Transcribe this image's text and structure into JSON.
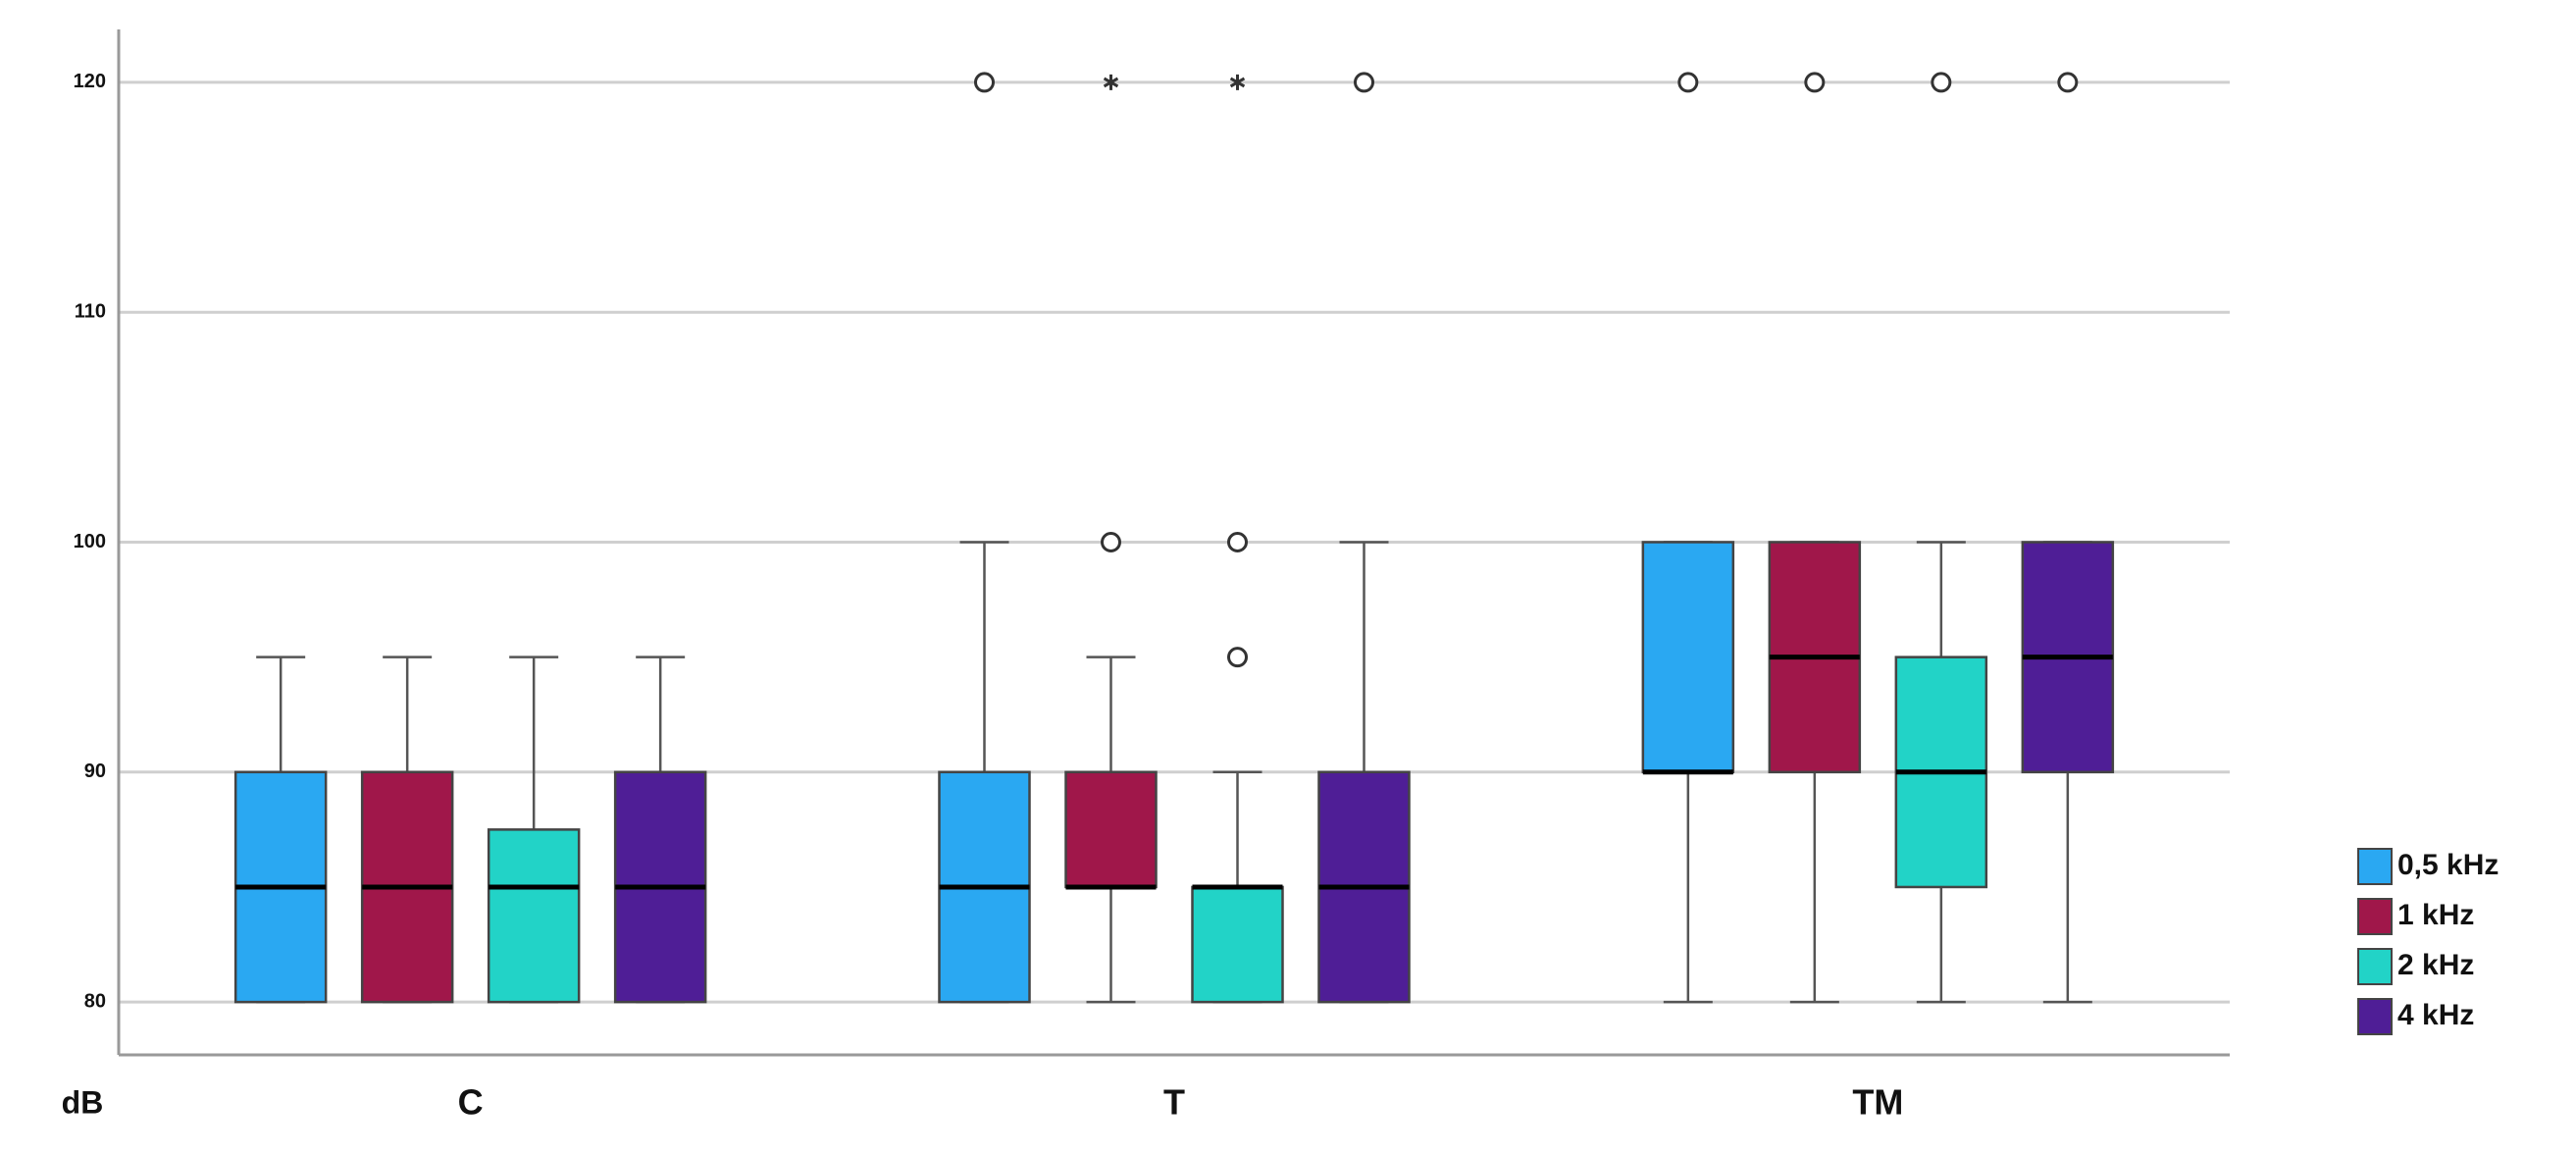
{
  "chart_data": {
    "type": "boxplot",
    "y_label": "dB",
    "categories": [
      "C",
      "T",
      "TM"
    ],
    "ylim": [
      77.7,
      122.3
    ],
    "yticks": [
      80,
      90,
      100,
      110,
      120
    ],
    "grid": true,
    "legend": "right",
    "series": [
      {
        "name": "0,5 kHz",
        "color": "#2aa8f2",
        "values": [
          {
            "min": 80,
            "q1": 80,
            "median": 85,
            "q3": 90,
            "max": 95,
            "outliers": [],
            "extremes": []
          },
          {
            "min": 80,
            "q1": 80,
            "median": 85,
            "q3": 90,
            "max": 100,
            "outliers": [
              120
            ],
            "extremes": []
          },
          {
            "min": 80,
            "q1": 90,
            "median": 90,
            "q3": 100,
            "max": 100,
            "outliers": [
              120
            ],
            "extremes": []
          }
        ]
      },
      {
        "name": "1 kHz",
        "color": "#a0174a",
        "values": [
          {
            "min": 80,
            "q1": 80,
            "median": 85,
            "q3": 90,
            "max": 95,
            "outliers": [],
            "extremes": []
          },
          {
            "min": 80,
            "q1": 85,
            "median": 85,
            "q3": 90,
            "max": 95,
            "outliers": [
              100
            ],
            "extremes": [
              120
            ]
          },
          {
            "min": 80,
            "q1": 90,
            "median": 95,
            "q3": 100,
            "max": 100,
            "outliers": [
              120
            ],
            "extremes": []
          }
        ]
      },
      {
        "name": "2 kHz",
        "color": "#22d3c7",
        "values": [
          {
            "min": 80,
            "q1": 80,
            "median": 85,
            "q3": 87.5,
            "max": 95,
            "outliers": [],
            "extremes": []
          },
          {
            "min": 80,
            "q1": 80,
            "median": 85,
            "q3": 85,
            "max": 90,
            "outliers": [
              95,
              100
            ],
            "extremes": [
              120
            ]
          },
          {
            "min": 80,
            "q1": 85,
            "median": 90,
            "q3": 95,
            "max": 100,
            "outliers": [
              120
            ],
            "extremes": []
          }
        ]
      },
      {
        "name": "4 kHz",
        "color": "#4f1e96",
        "values": [
          {
            "min": 80,
            "q1": 80,
            "median": 85,
            "q3": 90,
            "max": 95,
            "outliers": [],
            "extremes": []
          },
          {
            "min": 80,
            "q1": 80,
            "median": 85,
            "q3": 90,
            "max": 100,
            "outliers": [
              120
            ],
            "extremes": []
          },
          {
            "min": 80,
            "q1": 90,
            "median": 95,
            "q3": 100,
            "max": 100,
            "outliers": [
              120
            ],
            "extremes": []
          }
        ]
      }
    ]
  }
}
